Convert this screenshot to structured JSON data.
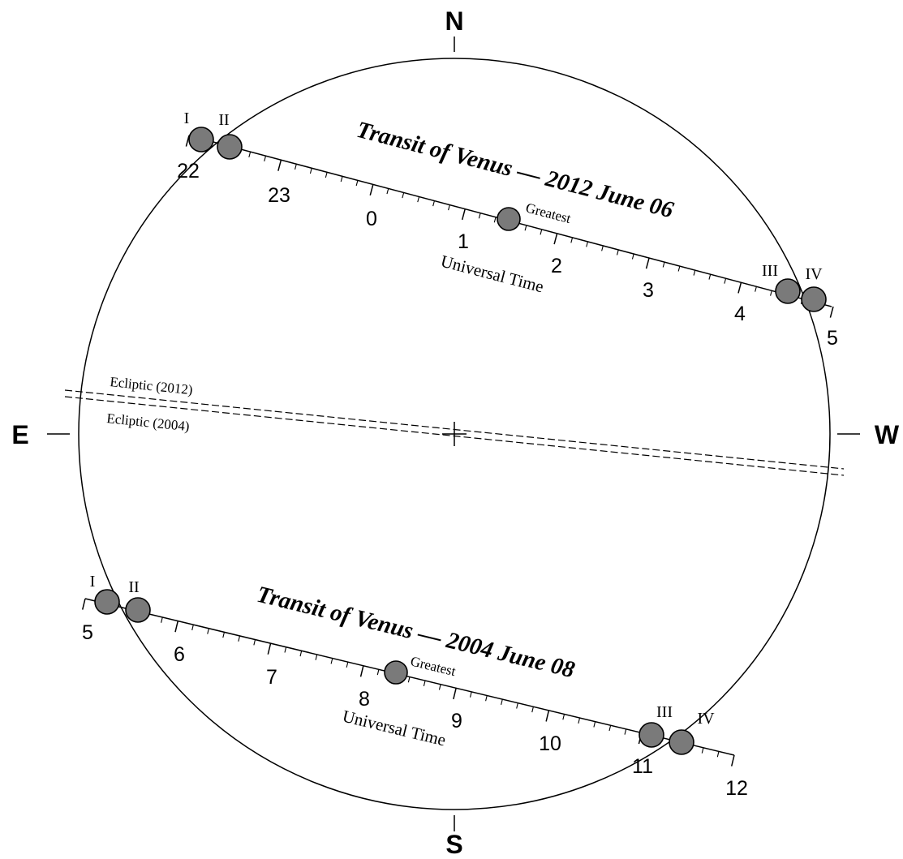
{
  "compass": {
    "north": "N",
    "south": "S",
    "east": "E",
    "west": "W"
  },
  "ecliptic": {
    "label_2012": "Ecliptic (2012)",
    "label_2004": "Ecliptic (2004)"
  },
  "transits": [
    {
      "year": 2012,
      "title": "Transit of Venus — 2012 June 06",
      "axis_label": "Universal Time",
      "greatest_label": "Greatest",
      "contacts": [
        "I",
        "II",
        "III",
        "IV"
      ],
      "hour_labels": [
        "22",
        "23",
        "0",
        "1",
        "2",
        "3",
        "4",
        "5"
      ]
    },
    {
      "year": 2004,
      "title": "Transit of Venus — 2004 June 08",
      "axis_label": "Universal Time",
      "greatest_label": "Greatest",
      "contacts": [
        "I",
        "II",
        "III",
        "IV"
      ],
      "hour_labels": [
        "5",
        "6",
        "7",
        "8",
        "9",
        "10",
        "11",
        "12"
      ]
    }
  ]
}
